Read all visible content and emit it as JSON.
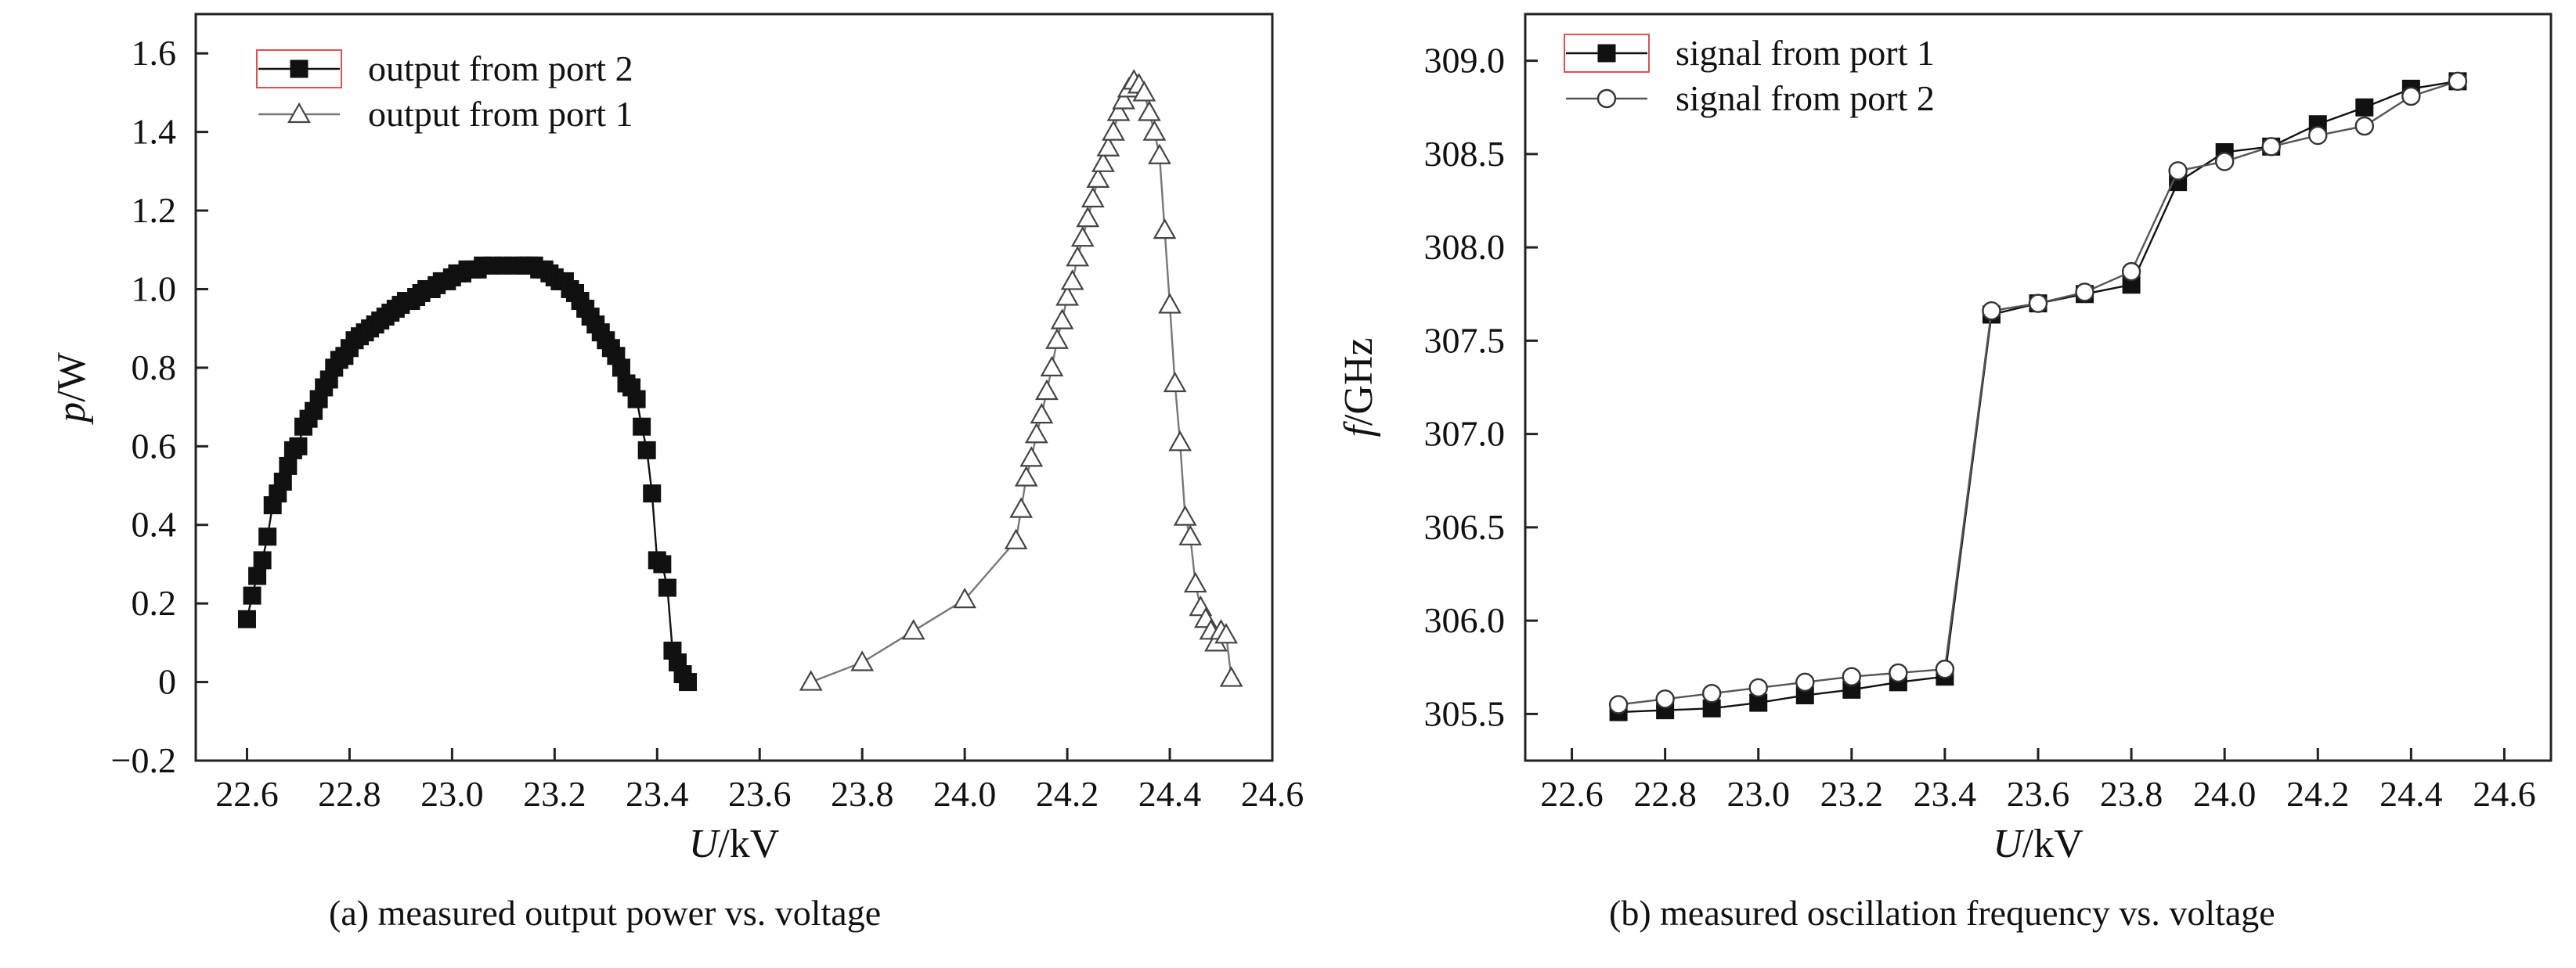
{
  "chart_data": [
    {
      "type": "scatter",
      "caption": "(a) measured output power vs. voltage",
      "xlabel_italic": "U",
      "xlabel_unit": "/kV",
      "ylabel_italic": "p",
      "ylabel_unit": "/W",
      "xlim": [
        22.5,
        24.6
      ],
      "ylim": [
        -0.2,
        1.7
      ],
      "xticks": [
        "22.6",
        "22.8",
        "23.0",
        "23.2",
        "23.4",
        "23.6",
        "23.8",
        "24.0",
        "24.2",
        "24.4",
        "24.6"
      ],
      "yticks": [
        "−0.2",
        "0",
        "0.2",
        "0.4",
        "0.6",
        "0.8",
        "1.0",
        "1.2",
        "1.4",
        "1.6"
      ],
      "legend_position": "top-left",
      "series": [
        {
          "name": "output from port 2",
          "marker": "square-filled",
          "color": "#111111",
          "x": [
            22.6,
            22.61,
            22.62,
            22.63,
            22.64,
            22.65,
            22.66,
            22.67,
            22.68,
            22.69,
            22.7,
            22.71,
            22.72,
            22.73,
            22.74,
            22.75,
            22.76,
            22.77,
            22.78,
            22.79,
            22.8,
            22.81,
            22.82,
            22.83,
            22.84,
            22.85,
            22.86,
            22.87,
            22.88,
            22.89,
            22.9,
            22.91,
            22.92,
            22.93,
            22.94,
            22.95,
            22.96,
            22.97,
            22.98,
            22.99,
            23.0,
            23.01,
            23.02,
            23.03,
            23.04,
            23.05,
            23.06,
            23.08,
            23.1,
            23.12,
            23.14,
            23.15,
            23.16,
            23.17,
            23.18,
            23.19,
            23.2,
            23.21,
            23.22,
            23.23,
            23.24,
            23.25,
            23.26,
            23.27,
            23.28,
            23.29,
            23.3,
            23.31,
            23.32,
            23.33,
            23.34,
            23.35,
            23.36,
            23.37,
            23.38,
            23.39,
            23.4,
            23.41,
            23.42,
            23.43,
            23.44,
            23.45,
            23.46
          ],
          "y": [
            0.16,
            0.22,
            0.27,
            0.31,
            0.37,
            0.45,
            0.48,
            0.51,
            0.55,
            0.59,
            0.6,
            0.65,
            0.67,
            0.69,
            0.72,
            0.75,
            0.77,
            0.8,
            0.82,
            0.83,
            0.85,
            0.87,
            0.88,
            0.89,
            0.9,
            0.91,
            0.92,
            0.93,
            0.94,
            0.95,
            0.96,
            0.97,
            0.97,
            0.98,
            0.99,
            1.0,
            1.0,
            1.01,
            1.02,
            1.02,
            1.03,
            1.04,
            1.04,
            1.05,
            1.05,
            1.05,
            1.06,
            1.06,
            1.06,
            1.06,
            1.06,
            1.06,
            1.06,
            1.05,
            1.05,
            1.04,
            1.03,
            1.02,
            1.02,
            1.0,
            0.99,
            0.97,
            0.95,
            0.93,
            0.91,
            0.89,
            0.87,
            0.85,
            0.83,
            0.8,
            0.76,
            0.75,
            0.72,
            0.65,
            0.59,
            0.48,
            0.31,
            0.3,
            0.24,
            0.08,
            0.05,
            0.02,
            0.0
          ]
        },
        {
          "name": "output from port 1",
          "marker": "triangle-open",
          "color": "#777777",
          "x": [
            23.7,
            23.8,
            23.9,
            24.0,
            24.1,
            24.11,
            24.12,
            24.13,
            24.14,
            24.15,
            24.16,
            24.17,
            24.18,
            24.19,
            24.2,
            24.21,
            24.22,
            24.23,
            24.24,
            24.25,
            24.26,
            24.27,
            24.28,
            24.29,
            24.3,
            24.31,
            24.32,
            24.33,
            24.34,
            24.35,
            24.36,
            24.37,
            24.38,
            24.39,
            24.4,
            24.41,
            24.42,
            24.43,
            24.44,
            24.45,
            24.46,
            24.47,
            24.48,
            24.49,
            24.5,
            24.51,
            24.52
          ],
          "y": [
            0.0,
            0.05,
            0.13,
            0.21,
            0.36,
            0.44,
            0.52,
            0.57,
            0.63,
            0.68,
            0.74,
            0.8,
            0.87,
            0.92,
            0.98,
            1.02,
            1.08,
            1.13,
            1.18,
            1.23,
            1.28,
            1.32,
            1.36,
            1.4,
            1.45,
            1.48,
            1.51,
            1.53,
            1.52,
            1.5,
            1.45,
            1.4,
            1.34,
            1.15,
            0.96,
            0.76,
            0.61,
            0.42,
            0.37,
            0.25,
            0.19,
            0.16,
            0.13,
            0.1,
            0.13,
            0.12,
            0.01
          ]
        }
      ]
    },
    {
      "type": "line",
      "caption": "(b) measured oscillation frequency vs. voltage",
      "xlabel_italic": "U",
      "xlabel_unit": "/kV",
      "ylabel_italic": "f",
      "ylabel_unit": "/GHz",
      "xlim": [
        22.5,
        24.7
      ],
      "ylim": [
        305.25,
        309.25
      ],
      "xticks": [
        "22.6",
        "22.8",
        "23.0",
        "23.2",
        "23.4",
        "23.6",
        "23.8",
        "24.0",
        "24.2",
        "24.4",
        "24.6"
      ],
      "yticks": [
        "305.5",
        "306.0",
        "306.5",
        "307.0",
        "307.5",
        "308.0",
        "308.5",
        "309.0"
      ],
      "legend_position": "top-left",
      "series": [
        {
          "name": "signal from port 1",
          "marker": "square-filled",
          "color": "#111111",
          "x": [
            22.7,
            22.8,
            22.9,
            23.0,
            23.1,
            23.2,
            23.3,
            23.4,
            23.5,
            23.6,
            23.7,
            23.8,
            23.9,
            24.0,
            24.1,
            24.2,
            24.3,
            24.4,
            24.5
          ],
          "y": [
            305.51,
            305.52,
            305.53,
            305.56,
            305.6,
            305.63,
            305.67,
            305.7,
            307.64,
            307.7,
            307.75,
            307.8,
            308.35,
            308.51,
            308.54,
            308.66,
            308.75,
            308.85,
            308.89
          ]
        },
        {
          "name": "signal from port 2",
          "marker": "circle-open",
          "color": "#555555",
          "x": [
            22.7,
            22.8,
            22.9,
            23.0,
            23.1,
            23.2,
            23.3,
            23.4,
            23.5,
            23.6,
            23.7,
            23.8,
            23.9,
            24.0,
            24.1,
            24.2,
            24.3,
            24.4,
            24.5
          ],
          "y": [
            305.55,
            305.58,
            305.61,
            305.64,
            305.67,
            305.7,
            305.72,
            305.74,
            307.66,
            307.7,
            307.76,
            307.87,
            308.41,
            308.46,
            308.54,
            308.6,
            308.65,
            308.81,
            308.89
          ]
        }
      ]
    }
  ]
}
